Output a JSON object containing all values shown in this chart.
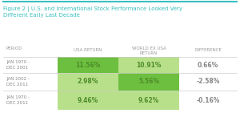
{
  "title_line1": "Figure 2 | U.S. and International Stock Performance Looked Very",
  "title_line2": "Different Early Last Decade",
  "col_headers_row1": [
    "",
    "USA RETURN",
    "WORLD EX USA",
    "DIFFERENCE"
  ],
  "col_headers_row2": [
    "PERIOD",
    "",
    "RETURN",
    ""
  ],
  "rows": [
    [
      "JAN 1970 -\nDEC 2001",
      "11.56%",
      "10.91%",
      "0.66%"
    ],
    [
      "JAN 2002 -\nDEC 2011",
      "2.98%",
      "5.56%",
      "-2.58%"
    ],
    [
      "JAN 1970 -\nDEC 2011",
      "9.46%",
      "9.62%",
      "-0.16%"
    ]
  ],
  "bg_color": "#ffffff",
  "title_color": "#3bbfbf",
  "header_text_color": "#999999",
  "period_text_color": "#888888",
  "value_text_color": "#4d8c2a",
  "diff_text_color": "#888888",
  "cell_colors_usa": [
    "#6dbf3f",
    "#b8e08a",
    "#b8e08a"
  ],
  "cell_colors_world": [
    "#b8e08a",
    "#6dbf3f",
    "#b8e08a"
  ],
  "border_color": "#3bbfbf",
  "row_line_color": "#cccccc",
  "figure_width": 3.0,
  "figure_height": 1.41,
  "dpi": 100
}
